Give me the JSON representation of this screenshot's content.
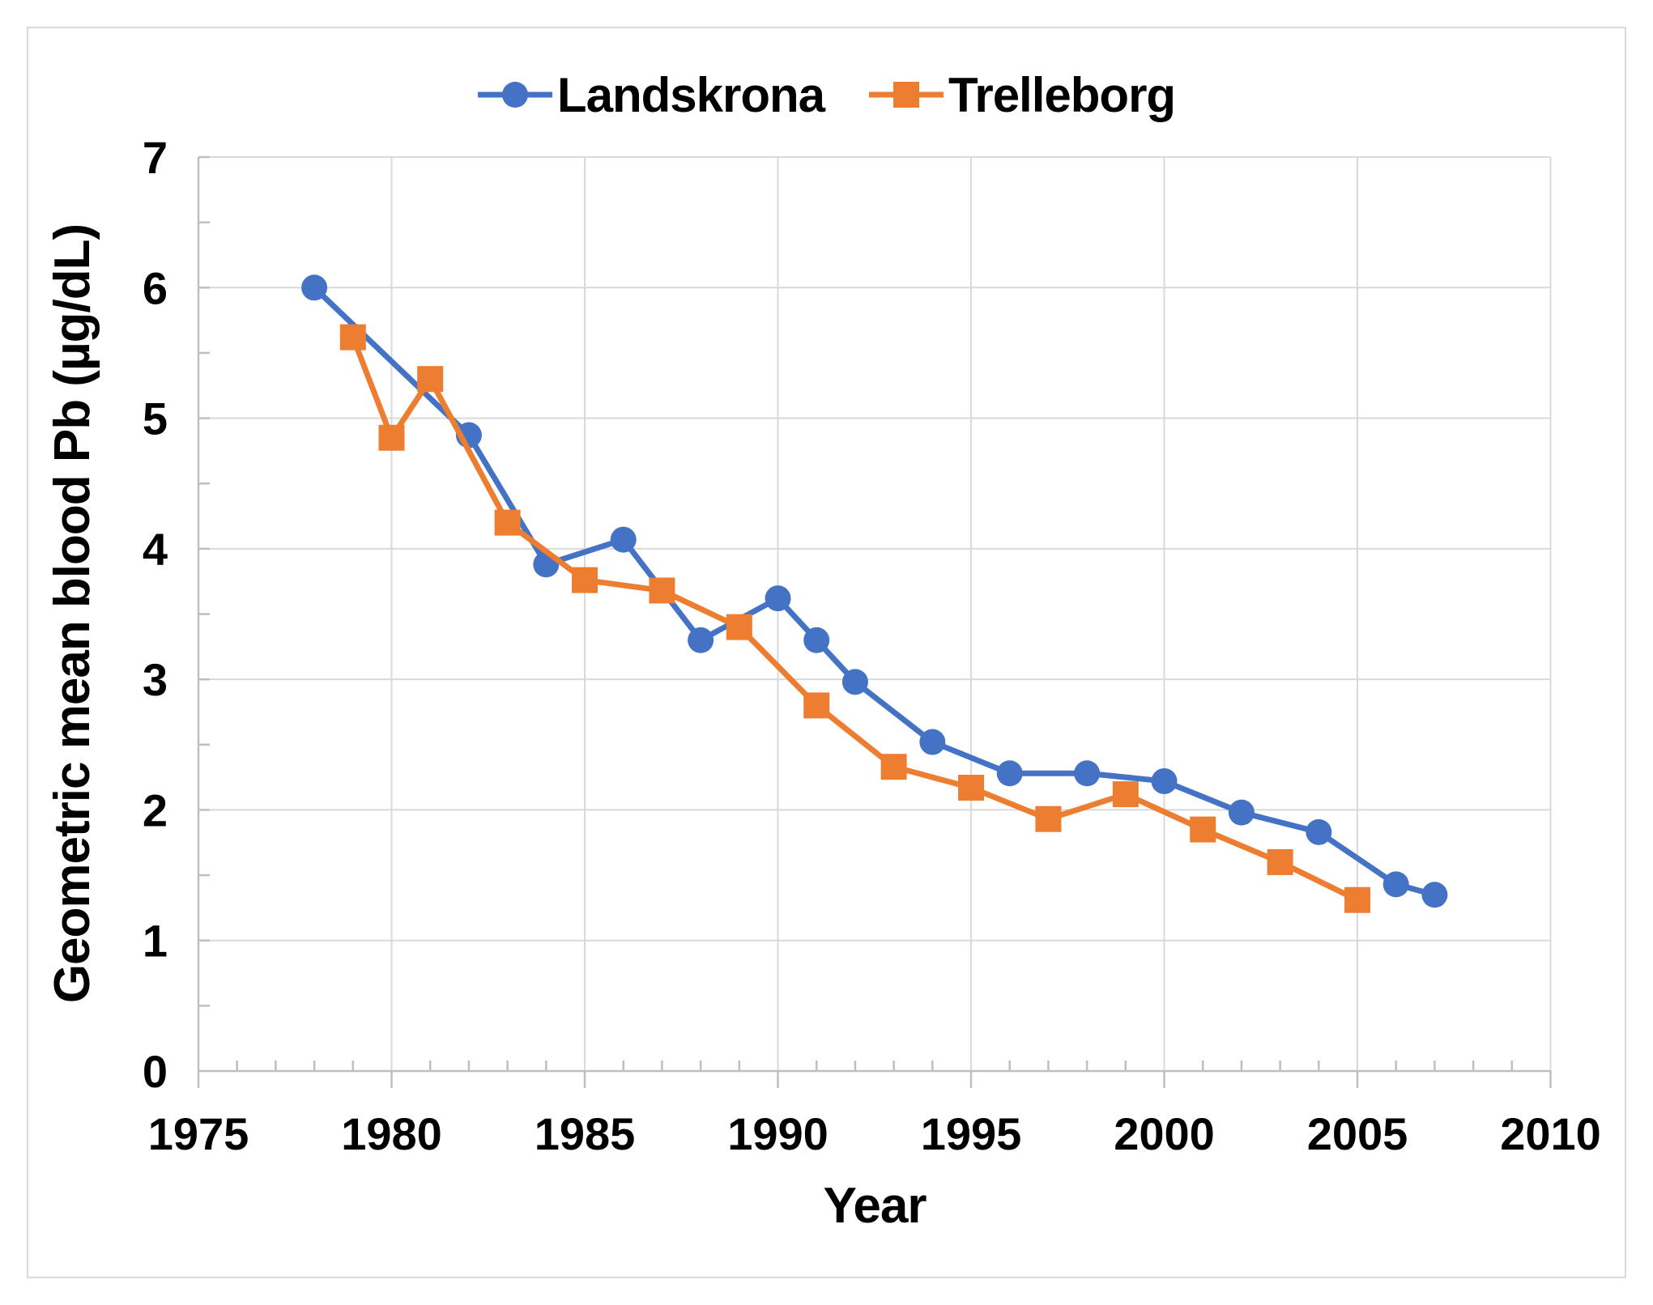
{
  "figure": {
    "background": "#ffffff",
    "frame_border_color": "#d9d9d9",
    "gridline_color": "#d9d9d9",
    "axis_line_color": "#bfbfbf",
    "text_color": "#000000"
  },
  "legend": {
    "position": "top-center",
    "items": [
      {
        "label": "Landskrona",
        "marker": "circle",
        "color": "#4472C4"
      },
      {
        "label": "Trelleborg",
        "marker": "square",
        "color": "#ED7D31"
      }
    ]
  },
  "axes": {
    "x": {
      "title": "Year",
      "min": 1975,
      "max": 2010,
      "major_tick_step": 5,
      "minor_tick_step": 1,
      "tick_labels": [
        "1975",
        "1980",
        "1985",
        "1990",
        "1995",
        "2000",
        "2005",
        "2010"
      ]
    },
    "y": {
      "title": "Geometric mean blood Pb (µg/dL)",
      "min": 0,
      "max": 7,
      "major_tick_step": 1,
      "minor_tick_step": 0.5,
      "tick_labels": [
        "0",
        "1",
        "2",
        "3",
        "4",
        "5",
        "6",
        "7"
      ]
    }
  },
  "chart_data": {
    "type": "line",
    "title": "",
    "xlabel": "Year",
    "ylabel": "Geometric mean blood Pb (µg/dL)",
    "xlim": [
      1975,
      2010
    ],
    "ylim": [
      0,
      7
    ],
    "grid": true,
    "legend_position": "top-center",
    "series": [
      {
        "name": "Landskrona",
        "color": "#4472C4",
        "marker": "circle",
        "points": [
          [
            1978,
            6.0
          ],
          [
            1982,
            4.87
          ],
          [
            1984,
            3.88
          ],
          [
            1986,
            4.07
          ],
          [
            1988,
            3.3
          ],
          [
            1990,
            3.62
          ],
          [
            1991,
            3.3
          ],
          [
            1992,
            2.98
          ],
          [
            1994,
            2.52
          ],
          [
            1996,
            2.28
          ],
          [
            1998,
            2.28
          ],
          [
            2000,
            2.22
          ],
          [
            2002,
            1.98
          ],
          [
            2004,
            1.83
          ],
          [
            2006,
            1.43
          ],
          [
            2007,
            1.35
          ]
        ]
      },
      {
        "name": "Trelleborg",
        "color": "#ED7D31",
        "marker": "square",
        "points": [
          [
            1979,
            5.62
          ],
          [
            1980,
            4.85
          ],
          [
            1981,
            5.3
          ],
          [
            1983,
            4.2
          ],
          [
            1985,
            3.76
          ],
          [
            1987,
            3.68
          ],
          [
            1989,
            3.4
          ],
          [
            1991,
            2.8
          ],
          [
            1993,
            2.33
          ],
          [
            1995,
            2.17
          ],
          [
            1997,
            1.93
          ],
          [
            1999,
            2.12
          ],
          [
            2001,
            1.85
          ],
          [
            2003,
            1.6
          ],
          [
            2005,
            1.31
          ]
        ]
      }
    ]
  }
}
